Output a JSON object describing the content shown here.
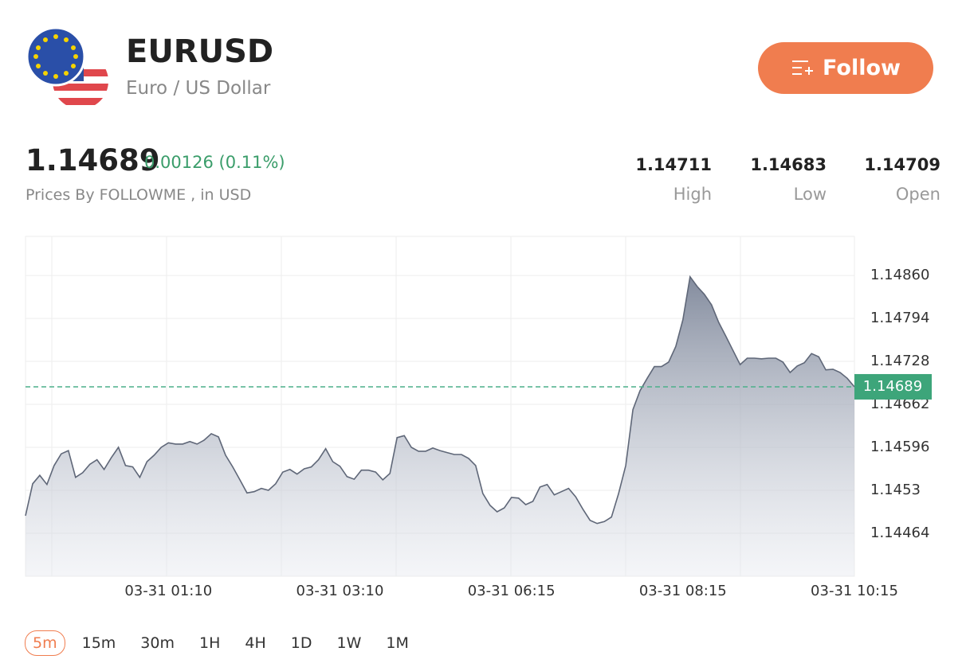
{
  "header": {
    "symbol": "EURUSD",
    "name": "Euro / US Dollar",
    "follow": "Follow"
  },
  "quote": {
    "price": 1.14689,
    "change": "0.00126 (0.11%)",
    "source": "Prices By FOLLOWME , in USD"
  },
  "stats": [
    {
      "value": 1.14711,
      "label": "High"
    },
    {
      "value": 1.14683,
      "label": "Low"
    },
    {
      "value": 1.14709,
      "label": "Open"
    }
  ],
  "chart_data": {
    "type": "area",
    "categories": [
      null,
      null,
      null,
      null,
      null,
      null,
      null,
      null,
      null,
      null,
      null,
      null,
      null,
      null,
      null,
      null,
      null,
      null,
      null,
      null,
      "03-31 01:10",
      null,
      null,
      null,
      null,
      null,
      null,
      null,
      null,
      null,
      null,
      null,
      null,
      null,
      null,
      null,
      null,
      null,
      null,
      null,
      null,
      null,
      null,
      null,
      "03-31 03:10",
      null,
      null,
      null,
      null,
      null,
      null,
      null,
      null,
      null,
      null,
      null,
      null,
      null,
      null,
      null,
      null,
      null,
      null,
      null,
      null,
      null,
      null,
      null,
      "03-31 06:15",
      null,
      null,
      null,
      null,
      null,
      null,
      null,
      null,
      null,
      null,
      null,
      null,
      null,
      null,
      null,
      null,
      null,
      null,
      null,
      null,
      null,
      null,
      null,
      "03-31 08:15",
      null,
      null,
      null,
      null,
      null,
      null,
      null,
      null,
      null,
      null,
      null,
      null,
      null,
      null,
      null,
      null,
      null,
      null,
      null,
      null,
      null,
      null,
      null,
      "03-31 10:15"
    ],
    "values": [
      1.14491,
      1.1454,
      1.14553,
      1.14539,
      1.14568,
      1.14586,
      1.14591,
      1.1455,
      1.14557,
      1.1457,
      1.14577,
      1.14562,
      1.1458,
      1.14596,
      1.14568,
      1.14566,
      1.1455,
      1.14574,
      1.14584,
      1.14596,
      1.14603,
      1.14601,
      1.14601,
      1.14605,
      1.14601,
      1.14607,
      1.14617,
      1.14612,
      1.14584,
      1.14566,
      1.14546,
      1.14526,
      1.14528,
      1.14533,
      1.1453,
      1.1454,
      1.14558,
      1.14562,
      1.14555,
      1.14563,
      1.14566,
      1.14577,
      1.14594,
      1.14574,
      1.14567,
      1.14551,
      1.14547,
      1.14561,
      1.14561,
      1.14558,
      1.14546,
      1.14556,
      1.14611,
      1.14614,
      1.14596,
      1.1459,
      1.1459,
      1.14595,
      1.14591,
      1.14588,
      1.14585,
      1.14585,
      1.14579,
      1.14568,
      1.14525,
      1.14507,
      1.14497,
      1.14503,
      1.14519,
      1.14518,
      1.14508,
      1.14513,
      1.14535,
      1.14539,
      1.14523,
      1.14528,
      1.14533,
      1.1452,
      1.14501,
      1.14484,
      1.14479,
      1.14482,
      1.14489,
      1.14525,
      1.14568,
      1.14654,
      1.14683,
      1.14702,
      1.1472,
      1.1472,
      1.14727,
      1.14751,
      1.14792,
      1.14858,
      1.14843,
      1.14831,
      1.14815,
      1.14788,
      1.14767,
      1.14745,
      1.14723,
      1.14733,
      1.14733,
      1.14732,
      1.14733,
      1.14733,
      1.14727,
      1.14711,
      1.14721,
      1.14726,
      1.1474,
      1.14735,
      1.14715,
      1.14716,
      1.14711,
      1.14702,
      1.14689
    ],
    "color": "#5f6778",
    "ylim": [
      1.14398,
      1.1492
    ],
    "yticks": [
      1.14464,
      1.1453,
      1.14596,
      1.14662,
      1.14728,
      1.14794,
      {
        "value": 1.1486,
        "label": "1.14860"
      }
    ],
    "grid": true,
    "last_value": 1.14689
  },
  "timeframes": {
    "options": [
      "5m",
      "15m",
      "30m",
      "1H",
      "4H",
      "1D",
      "1W",
      "1M"
    ],
    "selected": 0
  }
}
